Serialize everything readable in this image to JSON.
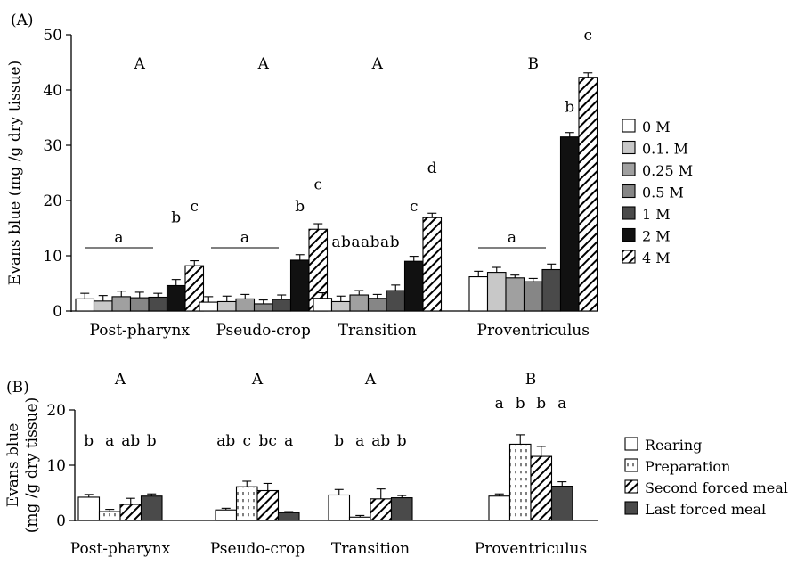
{
  "colors": {
    "black": "#000000",
    "white": "#ffffff",
    "light_gray": "#c8c8c8",
    "mid_gray": "#a0a0a0",
    "gray": "#868686",
    "dark_gray": "#4a4a4a",
    "near_black": "#111111"
  },
  "chart_data": [
    {
      "type": "bar",
      "panel_label": "(A)",
      "ylabel": "Evans blue (mg /g dry tissue)",
      "ylim": [
        0,
        50
      ],
      "yticks": [
        0,
        10,
        20,
        30,
        40,
        50
      ],
      "categories": [
        "Post-pharynx",
        "Pseudo-crop",
        "Transition",
        "Proventriculus"
      ],
      "series": [
        {
          "name": "0 M",
          "fill": "white",
          "values": [
            2.2,
            1.6,
            2.3,
            6.2
          ],
          "errors": [
            1.0,
            1.0,
            1.0,
            1.0
          ]
        },
        {
          "name": "0.1. M",
          "fill": "light_gray",
          "values": [
            1.8,
            1.7,
            1.7,
            7.0
          ],
          "errors": [
            1.0,
            1.0,
            1.0,
            0.9
          ]
        },
        {
          "name": "0.25 M",
          "fill": "mid_gray",
          "values": [
            2.6,
            2.2,
            2.9,
            6.0
          ],
          "errors": [
            1.0,
            0.8,
            0.8,
            0.5
          ]
        },
        {
          "name": "0.5 M",
          "fill": "gray",
          "values": [
            2.4,
            1.3,
            2.3,
            5.3
          ],
          "errors": [
            1.0,
            0.7,
            0.7,
            0.6
          ]
        },
        {
          "name": "1 M",
          "fill": "dark_gray",
          "values": [
            2.5,
            2.1,
            3.7,
            7.5
          ],
          "errors": [
            0.7,
            0.8,
            1.0,
            1.0
          ]
        },
        {
          "name": "2 M",
          "fill": "near_black",
          "values": [
            4.6,
            9.2,
            9.0,
            31.5
          ],
          "errors": [
            1.1,
            1.0,
            0.9,
            0.8
          ]
        },
        {
          "name": "4 M",
          "fill": "hatch",
          "values": [
            8.2,
            14.8,
            16.9,
            42.3
          ],
          "errors": [
            0.9,
            1.0,
            0.8,
            0.8
          ]
        }
      ],
      "group_letters": [
        "A",
        "A",
        "A",
        "B"
      ],
      "bar_letters": [
        [
          {
            "series": 5,
            "text": "b",
            "y": 17
          },
          {
            "series": 6,
            "text": "c",
            "y": 19
          }
        ],
        [
          {
            "series": 5,
            "text": "b",
            "y": 19
          },
          {
            "series": 6,
            "text": "c",
            "y": 23
          }
        ],
        [
          {
            "series": 5,
            "text": "c",
            "y": 19
          },
          {
            "series": 6,
            "text": "d",
            "y": 26
          }
        ],
        [
          {
            "series": 5,
            "text": "b",
            "y": 37
          },
          {
            "series": 6,
            "text": "c",
            "y": 50
          }
        ]
      ],
      "bracket_letters": [
        {
          "group": 0,
          "text": "a"
        },
        {
          "group": 1,
          "text": "a"
        },
        {
          "group": 3,
          "text": "a"
        }
      ],
      "free_letters": {
        "group": 2,
        "text": "abaabab"
      },
      "legend_position": "right"
    },
    {
      "type": "bar",
      "panel_label": "(B)",
      "ylabel": [
        "Evans blue",
        "(mg /g dry tissue)"
      ],
      "ylim": [
        0,
        20
      ],
      "yticks": [
        0,
        10,
        20
      ],
      "categories": [
        "Post-pharynx",
        "Pseudo-crop",
        "Transition",
        "Proventriculus"
      ],
      "series": [
        {
          "name": "Rearing",
          "fill": "white",
          "values": [
            4.2,
            1.9,
            4.6,
            4.4
          ],
          "errors": [
            0.5,
            0.3,
            1.0,
            0.4
          ]
        },
        {
          "name": "Preparation",
          "fill": "dots",
          "values": [
            1.6,
            6.1,
            0.6,
            13.8
          ],
          "errors": [
            0.4,
            1.0,
            0.3,
            1.7
          ]
        },
        {
          "name": "Second forced meal",
          "fill": "hatch",
          "values": [
            2.9,
            5.4,
            3.9,
            11.6
          ],
          "errors": [
            1.1,
            1.3,
            1.8,
            1.8
          ]
        },
        {
          "name": "Last forced meal",
          "fill": "dark_gray",
          "values": [
            4.4,
            1.4,
            4.1,
            6.2
          ],
          "errors": [
            0.4,
            0.2,
            0.4,
            0.8
          ]
        }
      ],
      "group_letters": [
        "A",
        "A",
        "A",
        "B"
      ],
      "bar_letters": [
        [
          {
            "text": "b"
          },
          {
            "text": "a"
          },
          {
            "text": "ab"
          },
          {
            "text": "b"
          }
        ],
        [
          {
            "text": "ab"
          },
          {
            "text": "c"
          },
          {
            "text": "bc"
          },
          {
            "text": "a"
          }
        ],
        [
          {
            "text": "b"
          },
          {
            "text": "a"
          },
          {
            "text": "ab"
          },
          {
            "text": "b"
          }
        ],
        [
          {
            "text": "a"
          },
          {
            "text": "b"
          },
          {
            "text": "b"
          },
          {
            "text": "a"
          }
        ]
      ],
      "legend_position": "right"
    }
  ]
}
